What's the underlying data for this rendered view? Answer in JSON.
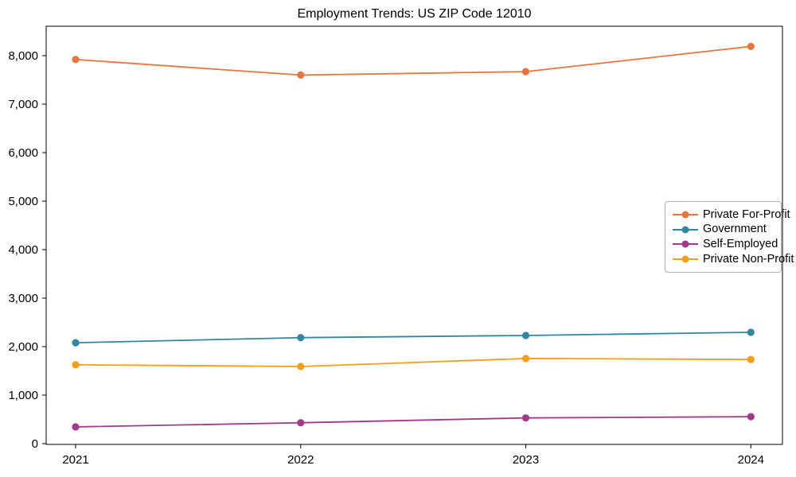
{
  "chart_data": {
    "type": "line",
    "title": "Employment Trends: US ZIP Code 12010",
    "xlabel": "",
    "ylabel": "",
    "x": [
      "2021",
      "2022",
      "2023",
      "2024"
    ],
    "series": [
      {
        "name": "Private For-Profit",
        "color": "#E6753F",
        "values": [
          7920,
          7600,
          7670,
          8190
        ]
      },
      {
        "name": "Government",
        "color": "#3186A3",
        "values": [
          2080,
          2185,
          2230,
          2295
        ]
      },
      {
        "name": "Self-Employed",
        "color": "#A23A8B",
        "values": [
          345,
          430,
          530,
          555
        ]
      },
      {
        "name": "Private Non-Profit",
        "color": "#F49D1B",
        "values": [
          1625,
          1590,
          1755,
          1735
        ]
      }
    ],
    "ylim": [
      0,
      8600
    ],
    "yticks": [
      0,
      1000,
      2000,
      3000,
      4000,
      5000,
      6000,
      7000,
      8000
    ],
    "ytick_labels": [
      "0",
      "1,000",
      "2,000",
      "3,000",
      "4,000",
      "5,000",
      "6,000",
      "7,000",
      "8,000"
    ],
    "legend_position": "center right",
    "grid": false,
    "marker": "circle"
  }
}
